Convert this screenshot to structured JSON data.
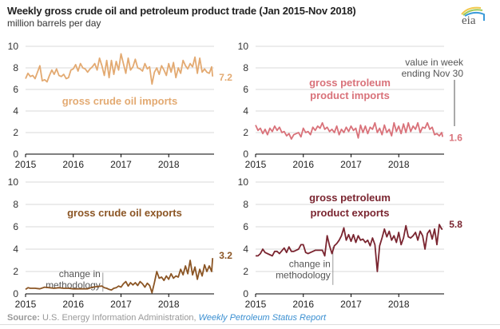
{
  "header": {
    "title": "Weekly gross crude oil and petroleum product trade (Jan 2015-Nov 2018)",
    "subtitle": "million barrels per day",
    "logo_text": "eia"
  },
  "footer": {
    "source_label": "Source:",
    "source_text": " U.S. Energy Information Administration, ",
    "source_link": "Weekly Petroleum Status Report"
  },
  "chart_data": [
    {
      "type": "line",
      "id": "crude-imports",
      "title": "gross crude oil imports",
      "color": "#e3aa72",
      "ylim": [
        0,
        10
      ],
      "yticks": [
        0,
        2,
        4,
        6,
        8,
        10
      ],
      "xlim": [
        2015,
        2018.95
      ],
      "xticks": [
        "2015",
        "2016",
        "2017",
        "2018"
      ],
      "end_label": "7.2",
      "x": [
        2015.0,
        2015.05,
        2015.1,
        2015.15,
        2015.2,
        2015.25,
        2015.3,
        2015.35,
        2015.4,
        2015.45,
        2015.5,
        2015.55,
        2015.6,
        2015.65,
        2015.7,
        2015.75,
        2015.8,
        2015.85,
        2015.9,
        2015.95,
        2016.0,
        2016.05,
        2016.1,
        2016.15,
        2016.2,
        2016.25,
        2016.3,
        2016.35,
        2016.4,
        2016.45,
        2016.5,
        2016.55,
        2016.6,
        2016.65,
        2016.7,
        2016.75,
        2016.8,
        2016.85,
        2016.9,
        2016.95,
        2017.0,
        2017.05,
        2017.1,
        2017.15,
        2017.2,
        2017.25,
        2017.3,
        2017.35,
        2017.4,
        2017.45,
        2017.5,
        2017.55,
        2017.6,
        2017.65,
        2017.7,
        2017.75,
        2017.8,
        2017.85,
        2017.9,
        2017.95,
        2018.0,
        2018.05,
        2018.1,
        2018.15,
        2018.2,
        2018.25,
        2018.3,
        2018.35,
        2018.4,
        2018.45,
        2018.5,
        2018.55,
        2018.6,
        2018.65,
        2018.7,
        2018.75,
        2018.8,
        2018.85,
        2018.9,
        2018.92
      ],
      "values": [
        7.0,
        7.5,
        7.2,
        7.3,
        7.0,
        7.6,
        8.2,
        6.8,
        6.9,
        6.7,
        7.3,
        7.8,
        7.4,
        7.9,
        7.3,
        7.2,
        7.4,
        7.0,
        7.1,
        7.8,
        7.9,
        8.3,
        7.7,
        8.4,
        8.0,
        7.9,
        7.6,
        7.9,
        8.1,
        8.4,
        7.8,
        8.9,
        8.2,
        7.3,
        8.7,
        7.1,
        8.7,
        7.4,
        8.6,
        7.8,
        9.3,
        8.4,
        7.5,
        8.9,
        7.8,
        8.1,
        8.8,
        8.0,
        7.9,
        7.7,
        8.4,
        7.9,
        8.1,
        6.5,
        7.6,
        8.0,
        7.4,
        8.2,
        7.8,
        7.3,
        8.4,
        7.6,
        8.5,
        7.1,
        8.0,
        7.5,
        8.7,
        8.2,
        7.9,
        8.4,
        8.1,
        9.0,
        7.5,
        8.9,
        7.6,
        7.9,
        7.6,
        7.5,
        8.1,
        7.2
      ]
    },
    {
      "type": "line",
      "id": "product-imports",
      "title": "gross petroleum product imports",
      "title_lines": [
        "gross petroleum",
        "product imports"
      ],
      "color": "#d9727a",
      "ylim": [
        0,
        10
      ],
      "yticks": [
        0,
        2,
        4,
        6,
        8,
        10
      ],
      "xlim": [
        2015,
        2018.95
      ],
      "xticks": [
        "2015",
        "2016",
        "2017",
        "2018"
      ],
      "end_label": "1.6",
      "annotation": [
        "value in week",
        "ending Nov 30"
      ],
      "x": [
        2015.0,
        2015.05,
        2015.1,
        2015.15,
        2015.2,
        2015.25,
        2015.3,
        2015.35,
        2015.4,
        2015.45,
        2015.5,
        2015.55,
        2015.6,
        2015.65,
        2015.7,
        2015.75,
        2015.8,
        2015.85,
        2015.9,
        2015.95,
        2016.0,
        2016.05,
        2016.1,
        2016.15,
        2016.2,
        2016.25,
        2016.3,
        2016.35,
        2016.4,
        2016.45,
        2016.5,
        2016.55,
        2016.6,
        2016.65,
        2016.7,
        2016.75,
        2016.8,
        2016.85,
        2016.9,
        2016.95,
        2017.0,
        2017.05,
        2017.1,
        2017.15,
        2017.2,
        2017.25,
        2017.3,
        2017.35,
        2017.4,
        2017.45,
        2017.5,
        2017.55,
        2017.6,
        2017.65,
        2017.7,
        2017.75,
        2017.8,
        2017.85,
        2017.9,
        2017.95,
        2018.0,
        2018.05,
        2018.1,
        2018.15,
        2018.2,
        2018.25,
        2018.3,
        2018.35,
        2018.4,
        2018.45,
        2018.5,
        2018.55,
        2018.6,
        2018.65,
        2018.7,
        2018.75,
        2018.8,
        2018.85,
        2018.9,
        2018.92
      ],
      "values": [
        2.7,
        2.2,
        2.4,
        1.9,
        2.3,
        1.8,
        2.4,
        2.1,
        2.6,
        2.2,
        2.5,
        2.0,
        2.1,
        1.7,
        1.9,
        1.4,
        1.8,
        1.9,
        2.0,
        1.6,
        2.4,
        2.0,
        2.1,
        1.8,
        2.5,
        2.2,
        2.6,
        2.4,
        2.9,
        2.3,
        2.5,
        2.1,
        2.3,
        2.0,
        2.6,
        1.8,
        2.3,
        2.0,
        2.5,
        2.1,
        2.6,
        2.2,
        2.4,
        1.5,
        2.7,
        2.0,
        2.6,
        1.9,
        2.5,
        2.3,
        2.9,
        2.0,
        2.4,
        1.8,
        2.7,
        2.0,
        2.3,
        1.7,
        2.9,
        2.1,
        2.6,
        1.9,
        2.8,
        2.0,
        2.9,
        2.1,
        2.6,
        2.3,
        2.9,
        2.0,
        2.5,
        2.4,
        2.9,
        2.3,
        2.5,
        1.8,
        1.9,
        1.7,
        2.0,
        1.6
      ]
    },
    {
      "type": "line",
      "id": "crude-exports",
      "title": "gross crude oil exports",
      "color": "#8b5524",
      "ylim": [
        0,
        10
      ],
      "yticks": [
        0,
        2,
        4,
        6,
        8,
        10
      ],
      "xlim": [
        2015,
        2018.95
      ],
      "xticks": [
        "2015",
        "2016",
        "2017",
        "2018"
      ],
      "end_label": "3.2",
      "annotation": [
        "change in",
        "methodology"
      ],
      "annotation_x": 2016.62,
      "x": [
        2015.0,
        2015.05,
        2015.1,
        2015.2,
        2015.3,
        2015.4,
        2015.5,
        2015.6,
        2015.7,
        2015.8,
        2015.9,
        2016.0,
        2016.1,
        2016.2,
        2016.3,
        2016.4,
        2016.5,
        2016.6,
        2016.65,
        2016.7,
        2016.75,
        2016.8,
        2016.85,
        2016.9,
        2016.95,
        2017.0,
        2017.05,
        2017.1,
        2017.15,
        2017.2,
        2017.25,
        2017.3,
        2017.35,
        2017.4,
        2017.45,
        2017.5,
        2017.55,
        2017.6,
        2017.65,
        2017.7,
        2017.75,
        2017.8,
        2017.85,
        2017.9,
        2017.95,
        2018.0,
        2018.05,
        2018.1,
        2018.15,
        2018.2,
        2018.25,
        2018.3,
        2018.35,
        2018.4,
        2018.45,
        2018.5,
        2018.55,
        2018.6,
        2018.65,
        2018.7,
        2018.75,
        2018.8,
        2018.85,
        2018.9,
        2018.92
      ],
      "values": [
        0.4,
        0.55,
        0.5,
        0.5,
        0.45,
        0.6,
        0.55,
        0.5,
        0.55,
        0.5,
        0.5,
        0.45,
        0.45,
        0.45,
        0.45,
        0.6,
        0.65,
        0.7,
        0.55,
        0.5,
        0.4,
        0.35,
        0.5,
        0.55,
        0.7,
        0.6,
        0.9,
        1.1,
        0.7,
        1.0,
        0.8,
        1.0,
        0.75,
        1.1,
        0.9,
        0.6,
        0.95,
        0.75,
        0.1,
        1.0,
        2.0,
        1.4,
        1.5,
        1.2,
        1.6,
        1.3,
        1.8,
        1.4,
        1.6,
        1.5,
        2.2,
        1.7,
        2.5,
        1.8,
        3.0,
        1.7,
        2.4,
        1.3,
        2.2,
        1.6,
        2.6,
        2.0,
        2.5,
        2.0,
        3.2
      ]
    },
    {
      "type": "line",
      "id": "product-exports",
      "title": "gross petroleum product exports",
      "title_lines": [
        "gross petroleum",
        "product exports"
      ],
      "color": "#7a2530",
      "ylim": [
        0,
        10
      ],
      "yticks": [
        0,
        2,
        4,
        6,
        8,
        10
      ],
      "xlim": [
        2015,
        2018.95
      ],
      "xticks": [
        "2015",
        "2016",
        "2017",
        "2018"
      ],
      "end_label": "5.8",
      "annotation": [
        "change in",
        "methodology"
      ],
      "annotation_x": 2016.62,
      "x": [
        2015.0,
        2015.05,
        2015.1,
        2015.15,
        2015.2,
        2015.3,
        2015.35,
        2015.4,
        2015.45,
        2015.5,
        2015.6,
        2015.65,
        2015.7,
        2015.75,
        2015.8,
        2015.85,
        2015.9,
        2015.95,
        2016.0,
        2016.05,
        2016.1,
        2016.15,
        2016.2,
        2016.25,
        2016.3,
        2016.35,
        2016.4,
        2016.45,
        2016.5,
        2016.55,
        2016.6,
        2016.65,
        2016.7,
        2016.75,
        2016.8,
        2016.85,
        2016.9,
        2016.95,
        2017.0,
        2017.05,
        2017.1,
        2017.15,
        2017.2,
        2017.25,
        2017.3,
        2017.35,
        2017.4,
        2017.45,
        2017.5,
        2017.55,
        2017.6,
        2017.65,
        2017.7,
        2017.75,
        2017.8,
        2017.85,
        2017.9,
        2017.95,
        2018.0,
        2018.05,
        2018.1,
        2018.15,
        2018.2,
        2018.25,
        2018.3,
        2018.35,
        2018.4,
        2018.45,
        2018.5,
        2018.55,
        2018.6,
        2018.65,
        2018.7,
        2018.75,
        2018.8,
        2018.85,
        2018.9,
        2018.92
      ],
      "values": [
        3.4,
        3.4,
        3.6,
        4.0,
        3.7,
        3.5,
        3.4,
        3.8,
        3.8,
        3.6,
        4.1,
        3.7,
        4.2,
        3.8,
        3.8,
        3.9,
        4.0,
        4.4,
        4.4,
        3.7,
        3.6,
        3.7,
        3.8,
        3.9,
        3.9,
        3.9,
        3.9,
        3.4,
        5.2,
        4.3,
        3.6,
        4.3,
        4.5,
        4.8,
        5.2,
        5.9,
        4.8,
        5.3,
        4.7,
        5.3,
        4.6,
        5.2,
        4.8,
        4.9,
        4.6,
        4.8,
        4.3,
        5.0,
        4.4,
        2.0,
        4.3,
        5.0,
        5.8,
        5.1,
        5.6,
        4.8,
        5.2,
        4.6,
        5.5,
        4.4,
        5.0,
        6.1,
        5.1,
        5.0,
        5.2,
        5.5,
        4.8,
        5.6,
        5.2,
        4.0,
        5.4,
        5.7,
        4.9,
        5.8,
        4.4,
        6.2,
        5.8,
        5.8
      ]
    }
  ]
}
